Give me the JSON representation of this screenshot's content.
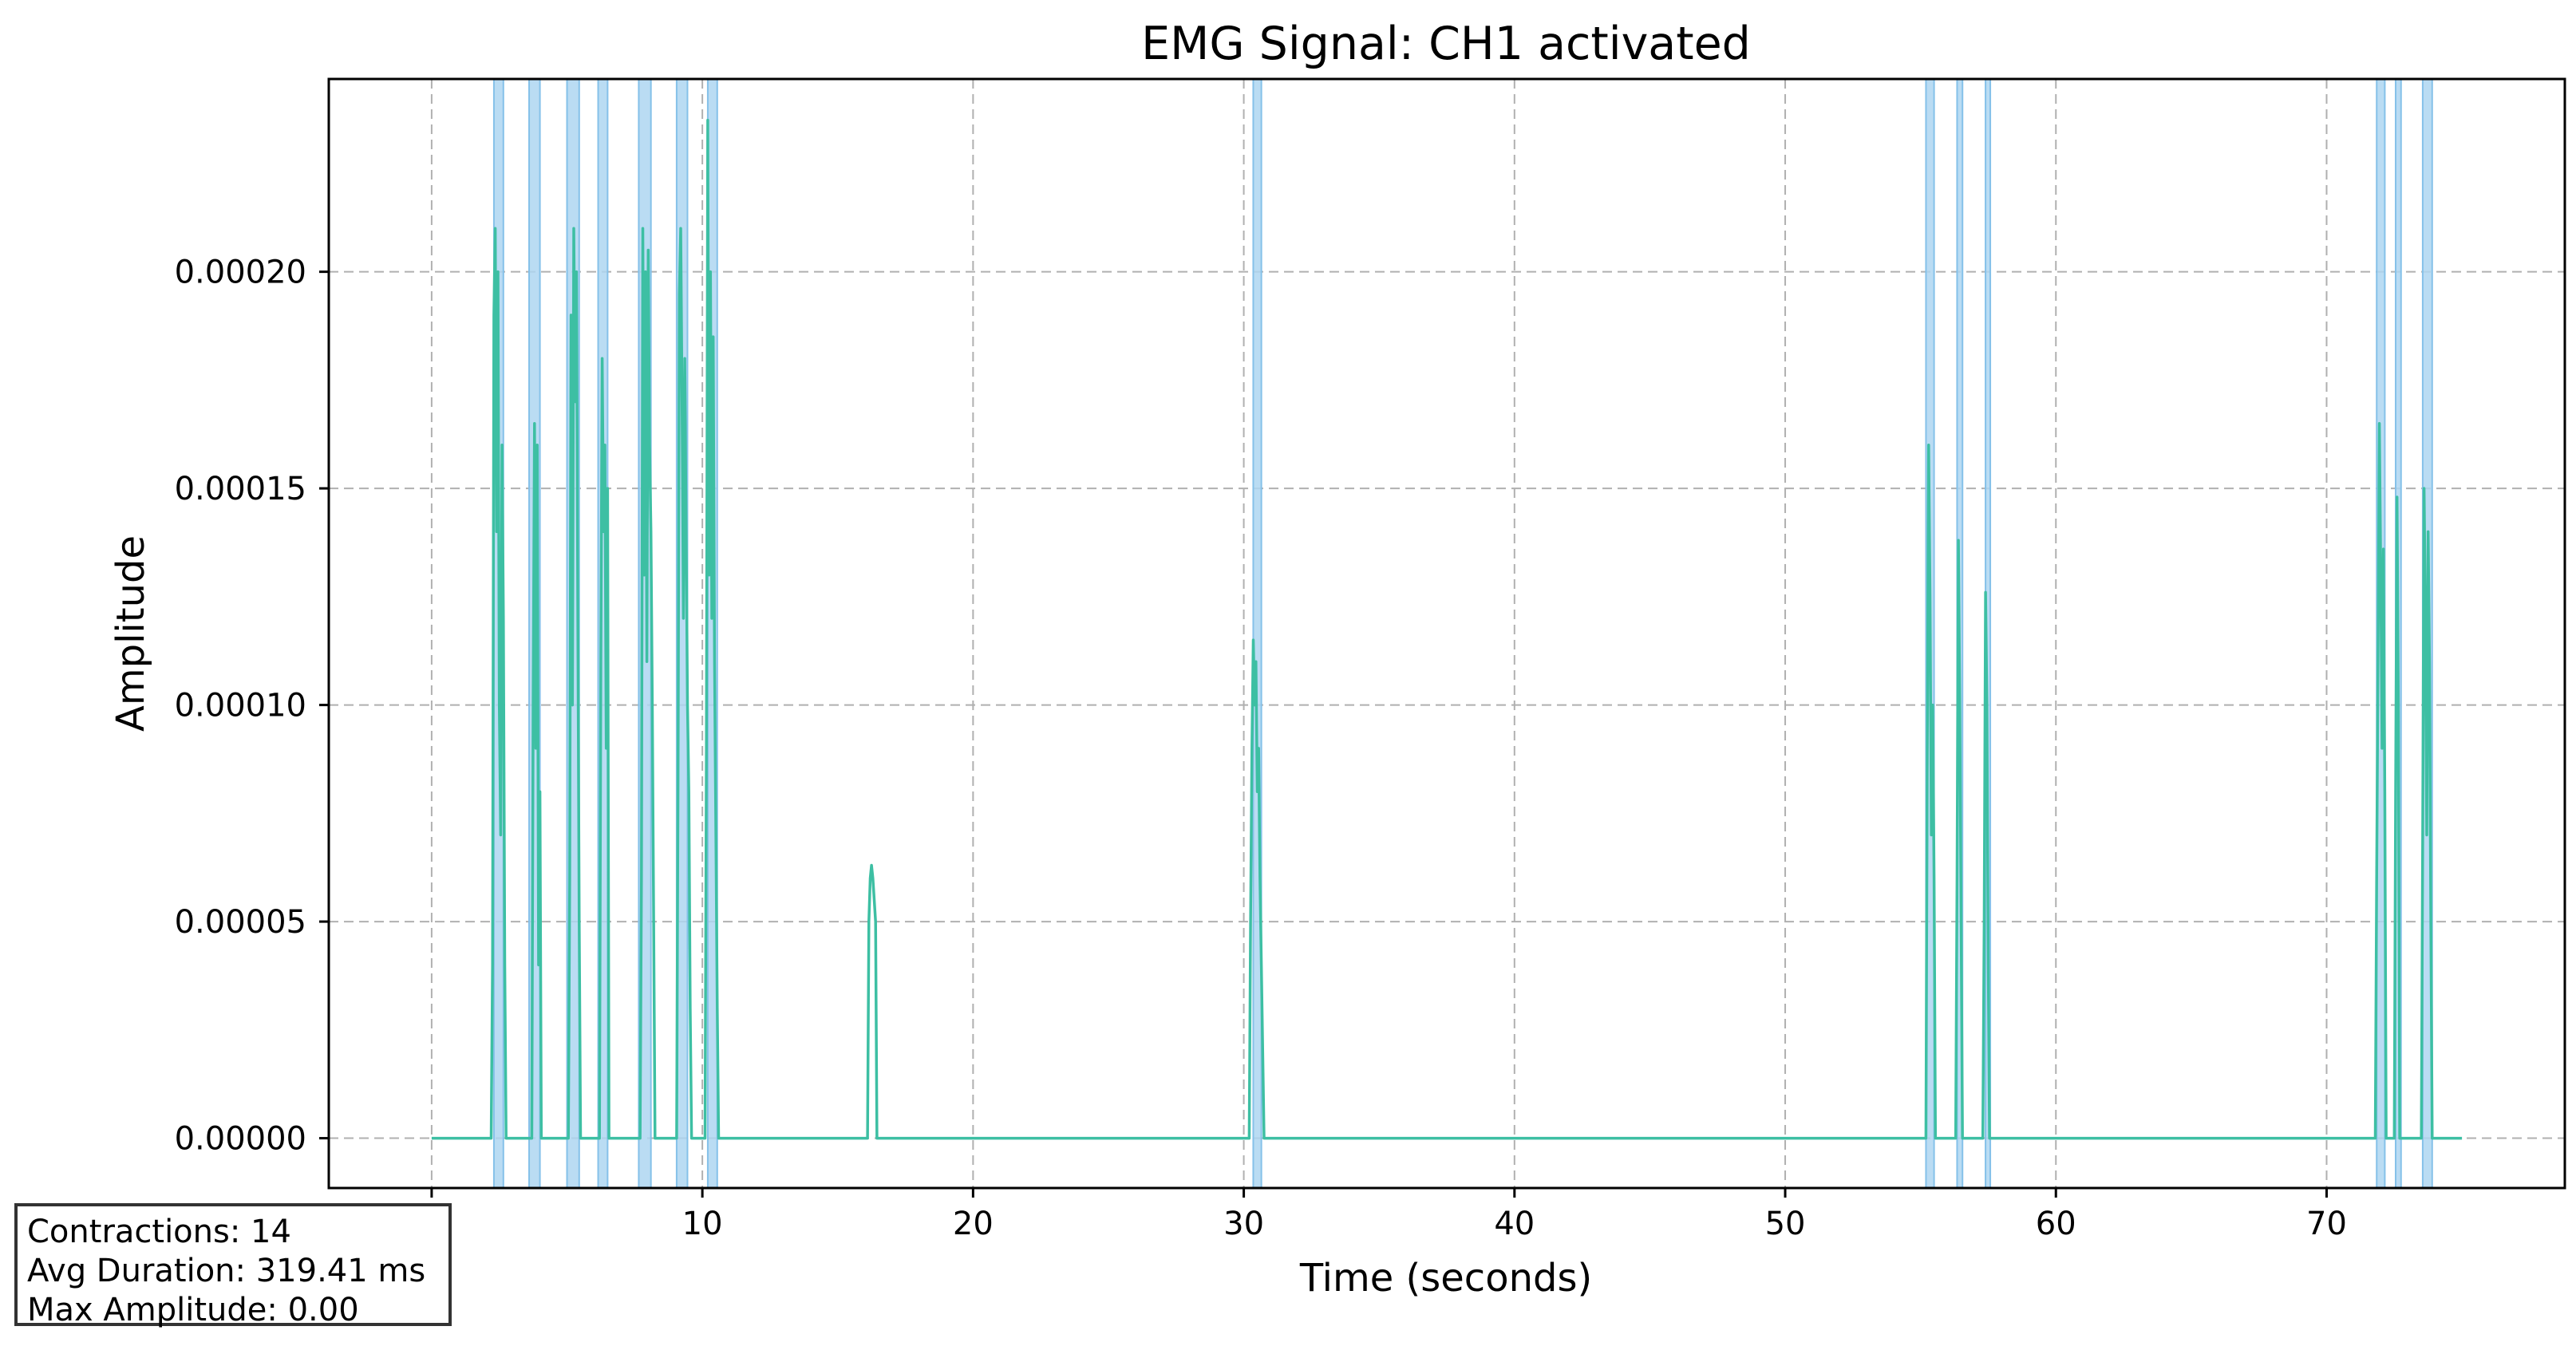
{
  "chart_data": {
    "type": "line",
    "title": "EMG Signal: CH1 activated",
    "xlabel": "Time (seconds)",
    "ylabel": "Amplitude",
    "xlim": [
      -3.8,
      78.8
    ],
    "ylim": [
      -1.15e-05,
      0.0002445
    ],
    "xticks": [
      0,
      10,
      20,
      30,
      40,
      50,
      60,
      70
    ],
    "xtick_labels": [
      "0",
      "10",
      "20",
      "30",
      "40",
      "50",
      "60",
      "70"
    ],
    "yticks": [
      0,
      5e-05,
      0.0001,
      0.00015,
      0.0002
    ],
    "ytick_labels": [
      "0.00000",
      "0.00005",
      "0.00010",
      "0.00015",
      "0.00020"
    ],
    "grid": true,
    "colors": {
      "line": "#3dbfa3",
      "shade": "#aed6f1",
      "shade_edge": "#85c1e9",
      "grid": "#b0b0b0"
    },
    "series": [
      {
        "x": [
          0,
          2.2,
          2.25,
          2.3,
          2.35,
          2.4,
          2.45,
          2.5,
          2.55,
          2.6,
          2.65,
          2.7,
          2.75,
          3.7,
          3.75,
          3.8,
          3.85,
          3.9,
          3.95,
          4.0,
          4.05,
          5.05,
          5.1,
          5.15,
          5.2,
          5.25,
          5.3,
          5.35,
          5.4,
          5.45,
          5.5,
          6.2,
          6.25,
          6.3,
          6.35,
          6.4,
          6.45,
          6.5,
          6.55,
          7.7,
          7.75,
          7.8,
          7.85,
          7.9,
          7.95,
          8.0,
          8.05,
          8.1,
          8.15,
          8.2,
          8.25,
          9.05,
          9.1,
          9.15,
          9.2,
          9.25,
          9.3,
          9.35,
          9.4,
          9.45,
          9.5,
          9.55,
          9.6,
          10.1,
          10.15,
          10.2,
          10.25,
          10.3,
          10.35,
          10.4,
          10.45,
          10.5,
          10.55,
          10.6,
          16.1,
          16.15,
          16.2,
          16.25,
          16.3,
          16.35,
          16.4,
          16.45,
          30.2,
          30.25,
          30.3,
          30.35,
          30.4,
          30.45,
          30.5,
          30.55,
          30.6,
          30.65,
          30.7,
          30.75,
          55.2,
          55.25,
          55.3,
          55.35,
          55.4,
          55.45,
          55.5,
          55.55,
          56.3,
          56.35,
          56.4,
          56.45,
          56.5,
          56.55,
          57.3,
          57.35,
          57.4,
          57.45,
          57.5,
          57.55,
          71.8,
          71.85,
          71.9,
          71.95,
          72.0,
          72.05,
          72.1,
          72.15,
          72.2,
          72.5,
          72.55,
          72.6,
          72.65,
          72.7,
          73.5,
          73.55,
          73.6,
          73.65,
          73.7,
          73.75,
          73.8,
          73.85,
          73.9,
          75.0
        ],
        "y": [
          0,
          0,
          4e-05,
          0.00019,
          0.00021,
          0.00014,
          0.0002,
          0.0001,
          7e-05,
          0.00016,
          0.00012,
          4e-05,
          0,
          0,
          0.0001,
          0.000165,
          9e-05,
          0.00016,
          4e-05,
          8e-05,
          0,
          0,
          6e-05,
          0.00019,
          0.0001,
          0.00021,
          0.00017,
          0.0002,
          0.00012,
          5e-05,
          0,
          0,
          0.00011,
          0.00018,
          0.00014,
          0.00016,
          9e-05,
          0.00015,
          0,
          0,
          6e-05,
          0.00021,
          0.00013,
          0.0002,
          0.00011,
          0.000205,
          0.00016,
          0.00014,
          0.0001,
          5e-05,
          0,
          0,
          8e-05,
          0.000195,
          0.00021,
          0.00017,
          0.00012,
          0.00018,
          0.00014,
          0.0001,
          8e-05,
          3e-05,
          0,
          0,
          9e-05,
          0.000235,
          0.00013,
          0.0002,
          0.00012,
          0.000185,
          0.00011,
          7e-05,
          3e-05,
          0,
          0,
          5e-05,
          6e-05,
          6.3e-05,
          6e-05,
          5.5e-05,
          5e-05,
          0,
          0,
          5e-05,
          9e-05,
          0.000115,
          0.0001,
          0.00011,
          8e-05,
          9e-05,
          6e-05,
          4e-05,
          2e-05,
          0,
          0,
          9e-05,
          0.00016,
          0.000125,
          7e-05,
          0.0001,
          6e-05,
          0,
          0,
          6e-05,
          0.000138,
          0.0001,
          5e-05,
          0,
          0,
          5e-05,
          0.000126,
          0.0001,
          4e-05,
          0,
          0,
          6e-05,
          0.00011,
          0.000165,
          0.00013,
          9e-05,
          0.000136,
          8e-05,
          0,
          0,
          8e-05,
          0.000148,
          0.0001,
          0,
          0,
          7e-05,
          0.00015,
          0.00012,
          7e-05,
          0.00014,
          0.00011,
          5e-05,
          0,
          0
        ]
      }
    ],
    "activations": [
      [
        2.3,
        2.65
      ],
      [
        3.6,
        4.0
      ],
      [
        5.0,
        5.45
      ],
      [
        6.15,
        6.5
      ],
      [
        7.65,
        8.1
      ],
      [
        9.05,
        9.45
      ],
      [
        10.2,
        10.55
      ],
      [
        30.35,
        30.65
      ],
      [
        55.2,
        55.5
      ],
      [
        56.35,
        56.55
      ],
      [
        57.4,
        57.55
      ],
      [
        71.85,
        72.15
      ],
      [
        72.55,
        72.75
      ],
      [
        73.55,
        73.9
      ]
    ],
    "stats": {
      "contractions": "Contractions: 14",
      "avg_duration": "Avg Duration: 319.41 ms",
      "max_amplitude": "Max Amplitude: 0.00"
    }
  }
}
